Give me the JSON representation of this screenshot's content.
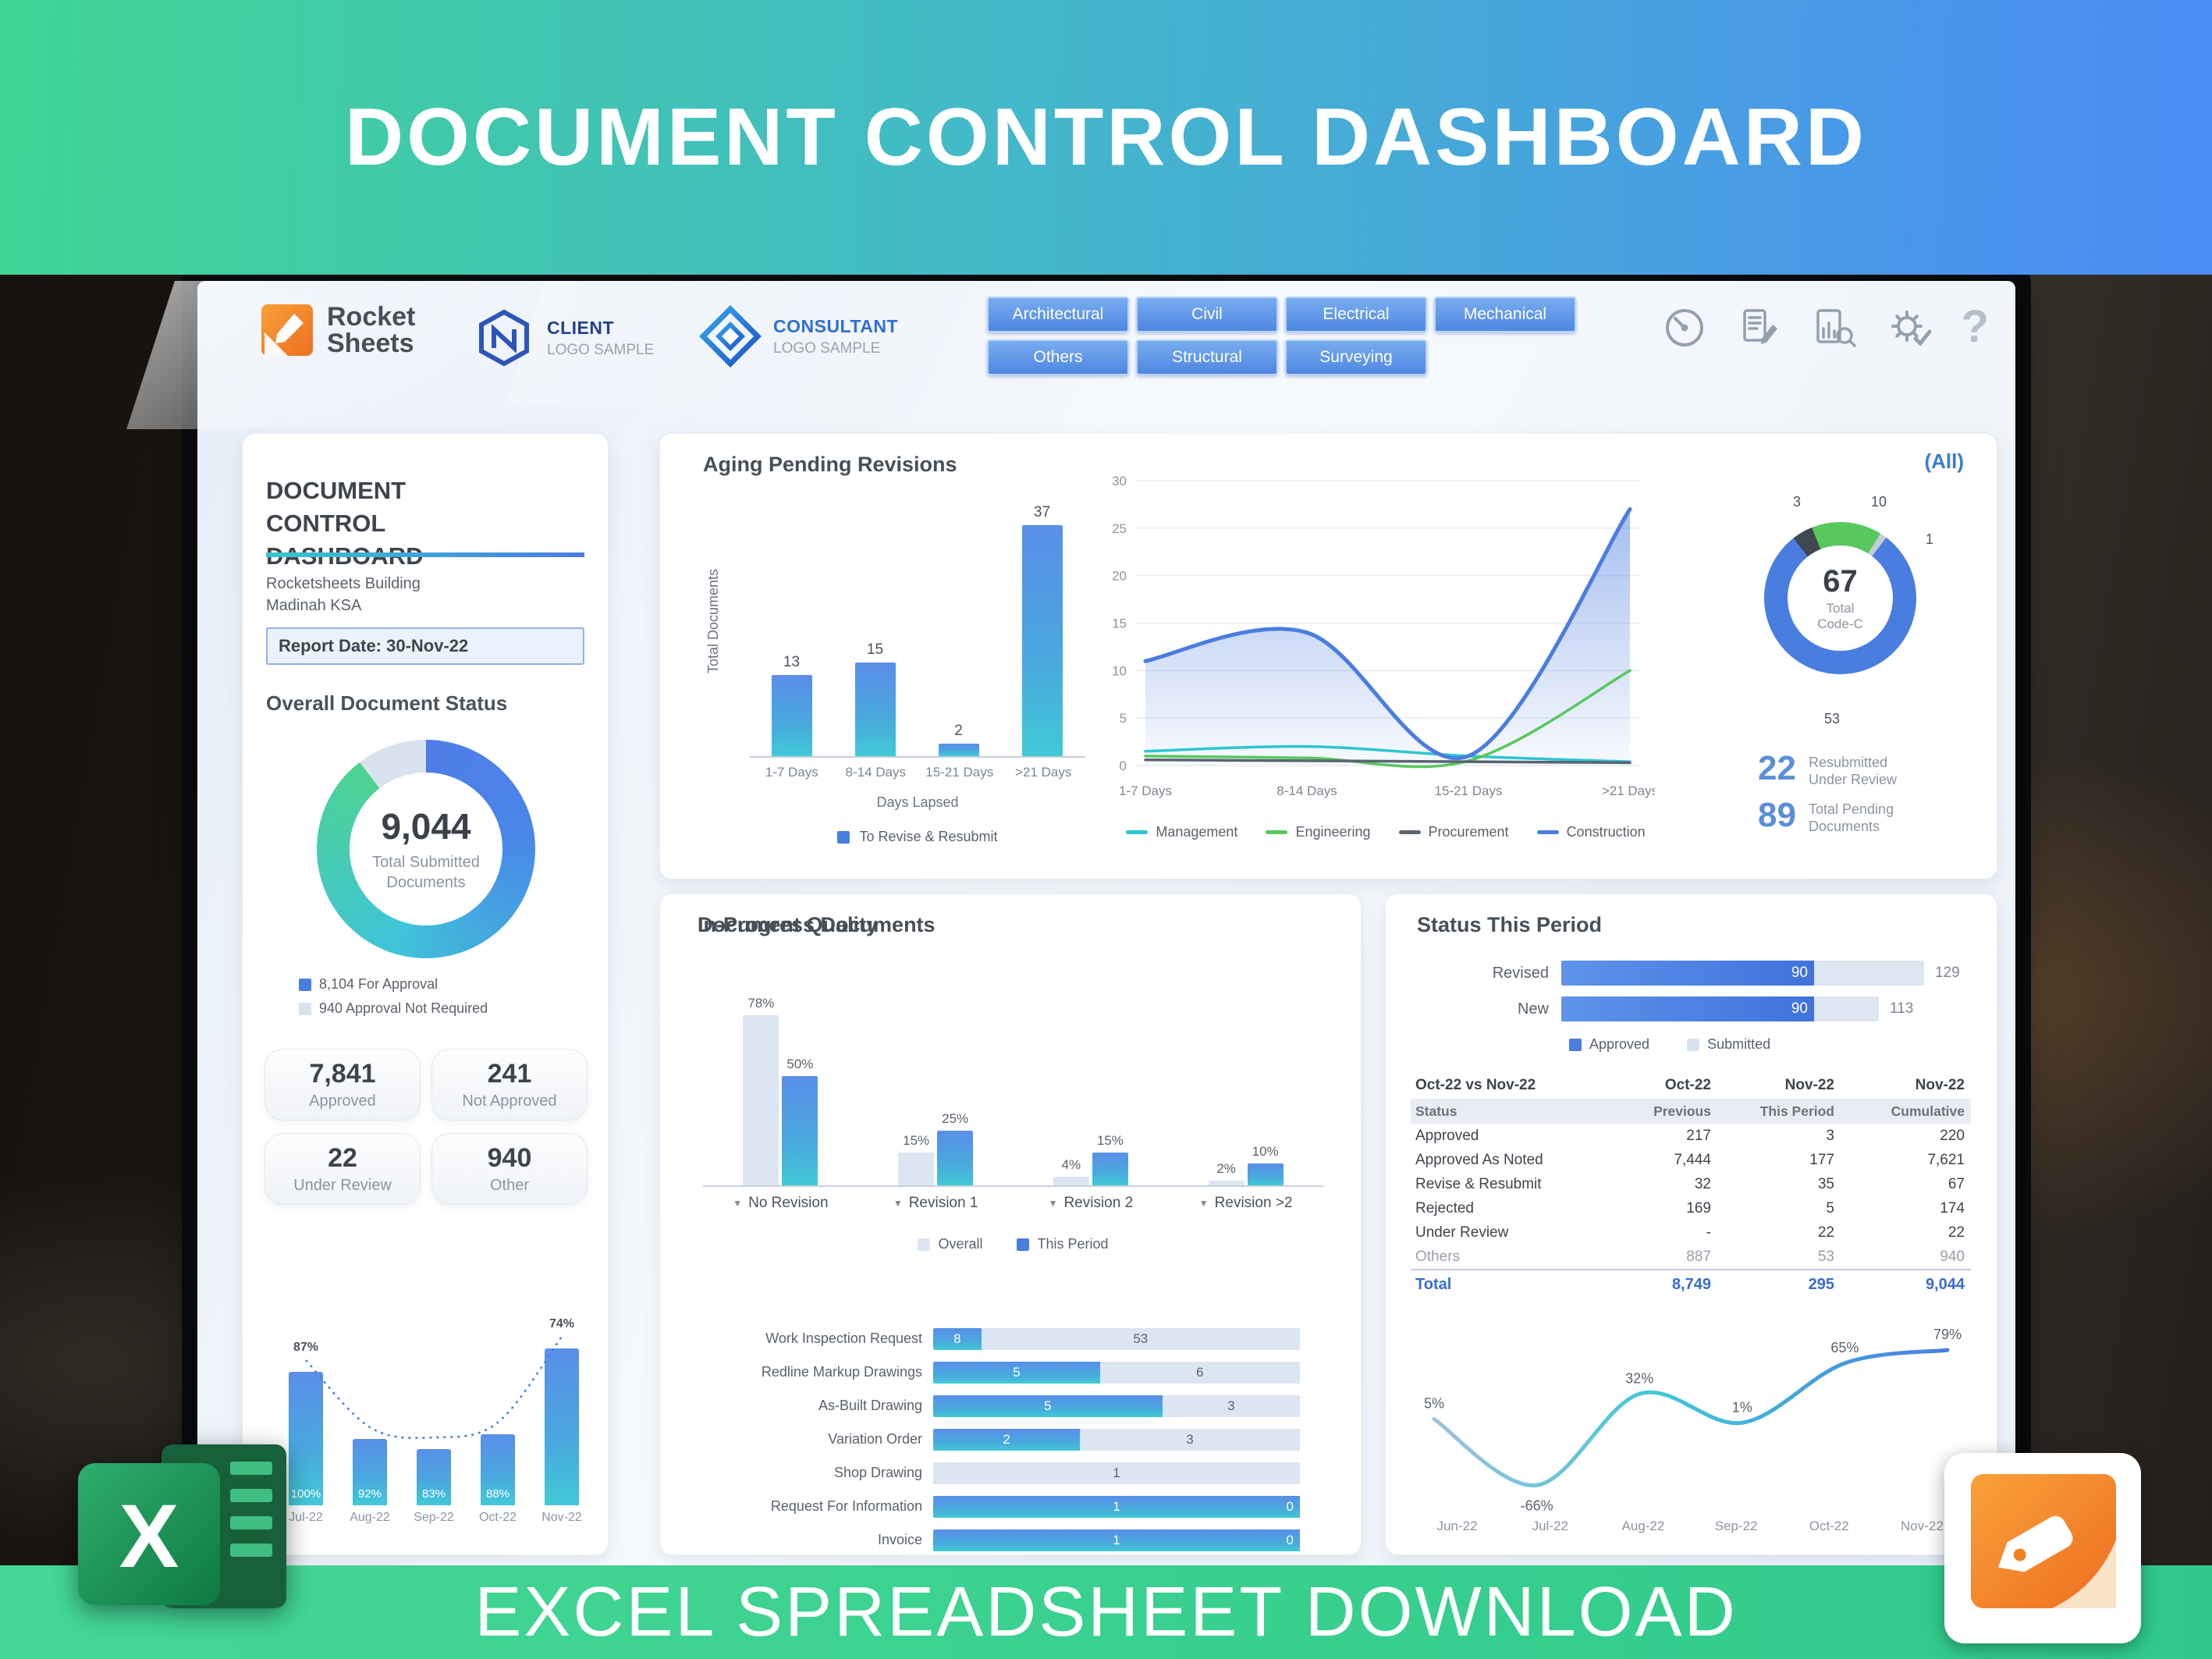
{
  "palette": {
    "banner_green": "#3ed593",
    "banner_blue": "#4b8bf4",
    "footer_green": "#3bd28f",
    "blue": "#4a7de0",
    "teal": "#3fc4d8",
    "green": "#4ed392",
    "light": "#d9e3f0",
    "accent_text": "#4472c4",
    "dark_text": "#3d444c",
    "gray_text": "#8b94a0"
  },
  "banners": {
    "top_title": "DOCUMENT CONTROL DASHBOARD",
    "bottom_title": "EXCEL SPREADSHEET DOWNLOAD"
  },
  "logos": {
    "excel_x": "X"
  },
  "header": {
    "brand": {
      "line1": "Rocket",
      "line2": "Sheets"
    },
    "client": {
      "title": "CLIENT",
      "subtitle": "LOGO SAMPLE"
    },
    "consultant": {
      "title": "CONSULTANT",
      "subtitle": "LOGO SAMPLE"
    },
    "filters_row1": [
      "Architectural",
      "Civil",
      "Electrical",
      "Mechanical"
    ],
    "filters_row2": [
      "Others",
      "Structural",
      "Surveying"
    ],
    "help_glyph": "?"
  },
  "sidebar": {
    "title": "DOCUMENT CONTROL DASHBOARD",
    "building": "Rocketsheets Building",
    "location": "Madinah KSA",
    "report_date": "Report Date: 30-Nov-22",
    "overall_title": "Overall Document Status",
    "donut": {
      "center_value": "9,044",
      "center_label": "Total Submitted Documents",
      "for_approval": 8104,
      "not_required": 940,
      "legend": [
        {
          "label": "8,104 For Approval",
          "color": "#4a7de0"
        },
        {
          "label": "940 Approval Not Required",
          "color": "#d9e3f0"
        }
      ]
    },
    "stats": [
      {
        "value": "7,841",
        "label": "Approved"
      },
      {
        "value": "241",
        "label": "Not Approved"
      },
      {
        "value": "22",
        "label": "Under Review"
      },
      {
        "value": "940",
        "label": "Other"
      }
    ],
    "mini": {
      "months": [
        "Jul-22",
        "Aug-22",
        "Sep-22",
        "Oct-22",
        "Nov-22"
      ],
      "bar_rel_heights": [
        0.62,
        0.31,
        0.26,
        0.33,
        0.73
      ],
      "bar_labels": [
        "100%",
        "92%",
        "83%",
        "88%",
        ""
      ],
      "point_labels": [
        {
          "index": 0,
          "text": "87%"
        },
        {
          "index": 4,
          "text": "74%"
        }
      ]
    }
  },
  "aging": {
    "title": "Aging Pending Revisions",
    "all_label": "(All)",
    "bar": {
      "categories": [
        "1-7 Days",
        "8-14 Days",
        "15-21 Days",
        ">21 Days"
      ],
      "values": [
        13,
        15,
        2,
        37
      ],
      "ylabel": "Total Documents",
      "xlabel": "Days Lapsed",
      "legend": "To Revise & Resubmit"
    },
    "line": {
      "categories": [
        "1-7 Days",
        "8-14 Days",
        "15-21 Days",
        ">21 Days"
      ],
      "yticks": [
        0,
        5,
        10,
        15,
        20,
        25,
        30
      ],
      "ymax": 30,
      "series": [
        {
          "name": "Management",
          "color": "#2ec5d3",
          "values": [
            1.5,
            2,
            1,
            0.4
          ]
        },
        {
          "name": "Engineering",
          "color": "#57c85e",
          "values": [
            1,
            0.8,
            0.5,
            10
          ]
        },
        {
          "name": "Procurement",
          "color": "#5a6470",
          "values": [
            0.6,
            0.5,
            0.4,
            0.3
          ]
        },
        {
          "name": "Construction",
          "color": "#4a7de0",
          "values": [
            11,
            14,
            1,
            27
          ],
          "area": true
        }
      ]
    },
    "donut": {
      "center_value": "67",
      "center_sub": "Total Code-C",
      "segments": [
        {
          "label": "3",
          "value": 3,
          "color": "#3f4750"
        },
        {
          "label": "10",
          "value": 10,
          "color": "#57c85e"
        },
        {
          "label": "1",
          "value": 1,
          "color": "#c3cdd9"
        },
        {
          "label": "53",
          "value": 53,
          "color": "#4a7de0"
        }
      ]
    },
    "kpis": [
      {
        "value": "22",
        "label1": "Resubmitted",
        "label2": "Under Review"
      },
      {
        "value": "89",
        "label1": "Total Pending",
        "label2": "Documents"
      }
    ]
  },
  "quality": {
    "title": "Document Quality",
    "filter_glyph": "▼",
    "groups": [
      {
        "label": "No Revision",
        "overall": 78,
        "period": 50
      },
      {
        "label": "Revision 1",
        "overall": 15,
        "period": 25
      },
      {
        "label": "Revision 2",
        "overall": 4,
        "period": 15
      },
      {
        "label": "Revision >2",
        "overall": 2,
        "period": 10
      }
    ],
    "legend": [
      {
        "label": "Overall",
        "color": "#dce6f2"
      },
      {
        "label": "This Period",
        "color": "#4a7de0"
      }
    ]
  },
  "in_progress": {
    "title": "In-Progress Documents",
    "rows": [
      {
        "label": "Work Inspection Request",
        "a": 8,
        "b": 53,
        "la": "8",
        "lb": "53"
      },
      {
        "label": "Redline Markup Drawings",
        "a": 5,
        "b": 6,
        "la": "5",
        "lb": "6"
      },
      {
        "label": "As-Built Drawing",
        "a": 5,
        "b": 3,
        "la": "5",
        "lb": "3"
      },
      {
        "label": "Variation Order",
        "a": 2,
        "b": 3,
        "la": "2",
        "lb": "3"
      },
      {
        "label": "Shop Drawing",
        "a": 0,
        "b": 1,
        "la": "",
        "lb": "1"
      },
      {
        "label": "Request For Information",
        "a": 1,
        "b": 0,
        "la": "1",
        "lb": "0"
      },
      {
        "label": "Invoice",
        "a": 1,
        "b": 0,
        "la": "1",
        "lb": "0"
      }
    ]
  },
  "status": {
    "title": "Status This Period",
    "bars": [
      {
        "label": "Revised",
        "approved": 90,
        "total": 129,
        "approved_label": "90",
        "total_label": "129"
      },
      {
        "label": "New",
        "approved": 90,
        "total": 113,
        "approved_label": "90",
        "total_label": "113"
      }
    ],
    "legend": [
      {
        "label": "Approved",
        "color": "#4a7de0"
      },
      {
        "label": "Submitted",
        "color": "#d9e3f0"
      }
    ],
    "table": {
      "title": "Oct-22 vs Nov-22",
      "col_months": [
        "Oct-22",
        "Nov-22",
        "Nov-22"
      ],
      "col_headers": [
        "Status",
        "Previous",
        "This Period",
        "Cumulative"
      ],
      "rows": [
        {
          "c": [
            "Approved",
            "217",
            "3",
            "220"
          ]
        },
        {
          "c": [
            "Approved As Noted",
            "7,444",
            "177",
            "7,621"
          ]
        },
        {
          "c": [
            "Revise & Resubmit",
            "32",
            "35",
            "67"
          ]
        },
        {
          "c": [
            "Rejected",
            "169",
            "5",
            "174"
          ]
        },
        {
          "c": [
            "Under Review",
            "-",
            "22",
            "22"
          ]
        },
        {
          "c": [
            "Others",
            "887",
            "53",
            "940"
          ],
          "muted": true
        }
      ],
      "total": {
        "c": [
          "Total",
          "8,749",
          "295",
          "9,044"
        ]
      }
    },
    "trend": {
      "months": [
        "Jun-22",
        "Jul-22",
        "Aug-22",
        "Sep-22",
        "Oct-22",
        "Nov-22"
      ],
      "values": [
        5,
        -66,
        32,
        1,
        65,
        79
      ],
      "labels": [
        "5%",
        "-66%",
        "32%",
        "1%",
        "65%",
        "79%"
      ]
    }
  }
}
